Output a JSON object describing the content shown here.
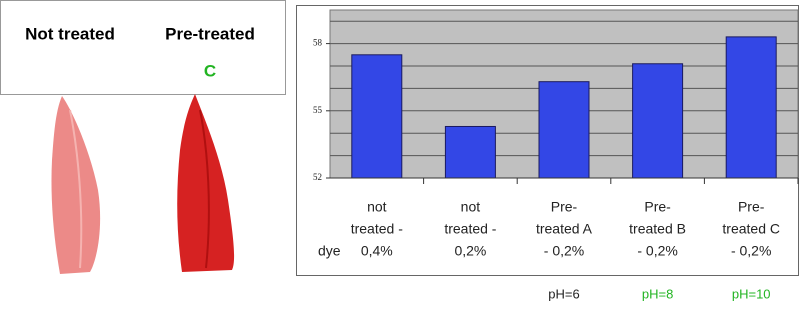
{
  "panel": {
    "labels": [
      "Not treated",
      "Pre-treated"
    ],
    "marker": "C",
    "marker_color": "#22b422"
  },
  "chart_data": {
    "type": "bar",
    "categories": [
      [
        "not",
        "treated -",
        "0,4%"
      ],
      [
        "not",
        "treated -",
        "0,2%"
      ],
      [
        "Pre-",
        "treated A",
        "- 0,2%"
      ],
      [
        "Pre-",
        "treated B",
        "- 0,2%"
      ],
      [
        "Pre-",
        "treated C",
        "- 0,2%"
      ]
    ],
    "values": [
      57.5,
      54.3,
      56.3,
      57.1,
      58.3
    ],
    "color": "#3347e6",
    "ylim": [
      52,
      59.5
    ],
    "yticks": [
      52,
      55,
      58
    ],
    "grid_values": [
      53,
      54,
      56,
      57,
      59
    ],
    "grid": true,
    "row_label": "dye",
    "annotations": [
      {
        "text": "pH=6",
        "category": 2,
        "color": "#222222"
      },
      {
        "text": "pH=8",
        "category": 3,
        "color": "#22b422"
      },
      {
        "text": "pH=10",
        "category": 4,
        "color": "#22b422"
      }
    ]
  }
}
